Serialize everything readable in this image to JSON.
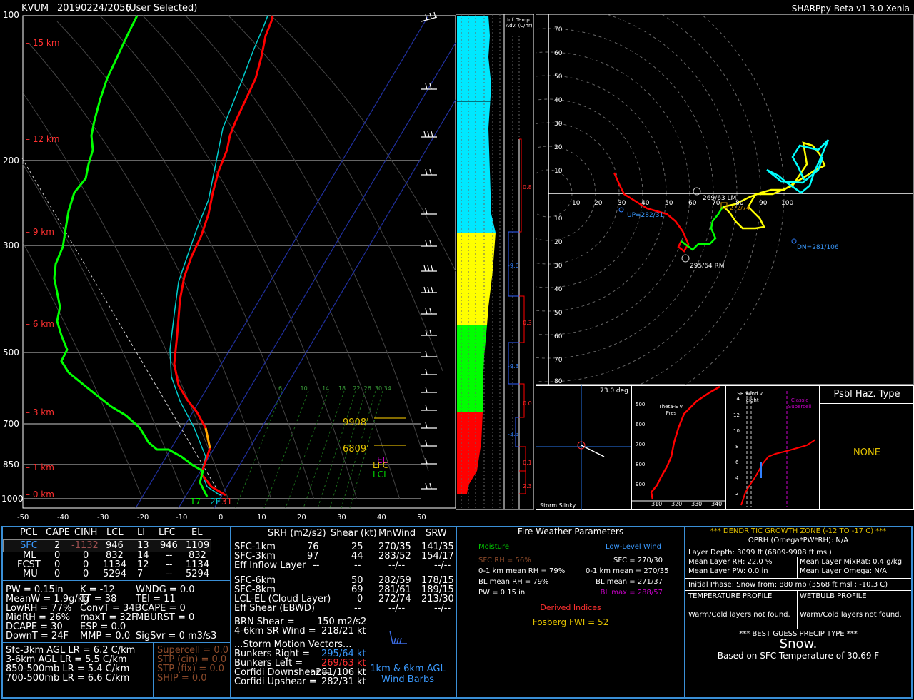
{
  "header": {
    "station": "KVUM",
    "datetime": "20190224/2056",
    "selection": "(User Selected)",
    "app": "SHARPpy Beta v1.3.0 Xenia"
  },
  "skewt": {
    "pressure_labels": [
      "100",
      "200",
      "300",
      "500",
      "700",
      "850",
      "1000"
    ],
    "height_labels": [
      "15 km",
      "12 km",
      "9 km",
      "6 km",
      "3 km",
      "1 km",
      "0 km"
    ],
    "temp_labels": [
      "-50",
      "-40",
      "-30",
      "-20",
      "-10",
      "0",
      "10",
      "20",
      "30",
      "40",
      "50"
    ],
    "mixing_ratio_labels": [
      "6",
      "10",
      "14",
      "18",
      "22",
      "26",
      "30",
      "34"
    ],
    "surface_labels": {
      "td": "17",
      "tw": "2E",
      "t": "31"
    },
    "levels": [
      {
        "label": "9908'",
        "color": "#e0c000"
      },
      {
        "label": "6809'",
        "color": "#e0c000"
      }
    ],
    "parcel_labels": [
      {
        "label": "EL",
        "color": "#cc00cc"
      },
      {
        "label": "LFC",
        "color": "#e0c000"
      },
      {
        "label": "LCL",
        "color": "#00cc00"
      }
    ]
  },
  "theta_column": {
    "title": "Inf. Temp. Adv. (C/hr)",
    "values": [
      "0.8",
      "-9.6",
      "0.3",
      "-9.3",
      "0.0",
      "-3.3",
      "0.1",
      "2.3"
    ]
  },
  "hodograph": {
    "x_ticks": [
      "10",
      "20",
      "30",
      "40",
      "50",
      "60",
      "70",
      "80",
      "90",
      "100"
    ],
    "y_ticks_up": [
      "70",
      "60",
      "50",
      "40",
      "30",
      "20",
      "10"
    ],
    "y_ticks_down": [
      "10",
      "20",
      "30",
      "40",
      "50",
      "60",
      "70",
      "80"
    ],
    "labels": {
      "lm": "269/63 LM",
      "lm2": "272/74",
      "rm": "295/64 RM",
      "up": "UP=282/31",
      "dn": "DN=281/106"
    }
  },
  "slinky": {
    "angle": "73.0 deg",
    "title": "Storm Slinky"
  },
  "thetae": {
    "title": "Theta-E v. Pres",
    "y_ticks": [
      "500",
      "600",
      "700",
      "800",
      "900"
    ],
    "x_ticks": [
      "310",
      "320",
      "330",
      "340"
    ]
  },
  "srwind": {
    "title": "SR Wind v. Height",
    "y_ticks": [
      "14",
      "12",
      "10",
      "8",
      "6",
      "4",
      "2"
    ],
    "classic": "Classic Supercell"
  },
  "psbl_haz": {
    "title": "Psbl Haz. Type",
    "value": "NONE"
  },
  "parcels": {
    "headers": [
      "PCL",
      "CAPE",
      "CINH",
      "LCL",
      "LI",
      "LFC",
      "EL"
    ],
    "rows": [
      [
        "SFC",
        "2",
        "-1132",
        "946",
        "13",
        "946",
        "1109"
      ],
      [
        "ML",
        "0",
        "0",
        "832",
        "14",
        "--",
        "832"
      ],
      [
        "FCST",
        "0",
        "0",
        "1134",
        "12",
        "--",
        "1134"
      ],
      [
        "MU",
        "0",
        "0",
        "5294",
        "7",
        "--",
        "5294"
      ]
    ]
  },
  "indices": {
    "col1": [
      "PW = 0.15in",
      "MeanW = 1.9g/kg",
      "LowRH = 77%",
      "MidRH = 26%",
      "DCAPE = 30",
      "DownT = 24F"
    ],
    "col2": [
      "K = -12",
      "TT = 38",
      "ConvT = 34F",
      "maxT = 32F",
      "ESP = 0.0",
      "MMP = 0.0"
    ],
    "col3": [
      "WNDG = 0.0",
      "TEI = 11",
      "3CAPE = 0",
      "MBURST = 0",
      "",
      "SigSvr = 0 m3/s3"
    ]
  },
  "lapse_rates": [
    "Sfc-3km AGL LR = 6.2 C/km",
    "3-6km AGL LR = 5.5 C/km",
    "850-500mb LR = 5.4 C/km",
    "700-500mb LR = 6.6 C/km"
  ],
  "composite": [
    "Supercell = 0.0",
    "STP (cin) = 0.0",
    "STP (fix) = 0.0",
    "SHIP = 0.0"
  ],
  "kinematics": {
    "headers": [
      "SRH (m2/s2)",
      "Shear (kt)",
      "MnWind",
      "SRW"
    ],
    "rows": [
      [
        "SFC-1km",
        "76",
        "25",
        "270/35",
        "141/35"
      ],
      [
        "SFC-3km",
        "97",
        "44",
        "283/52",
        "154/17"
      ],
      [
        "Eff Inflow Layer",
        "--",
        "--",
        "--/--",
        "--/--"
      ],
      [
        "SFC-6km",
        "",
        "50",
        "282/59",
        "178/15"
      ],
      [
        "SFC-8km",
        "",
        "69",
        "281/61",
        "189/15"
      ],
      [
        "LCL-EL (Cloud Layer)",
        "",
        "0",
        "272/74",
        "213/30"
      ],
      [
        "Eff Shear (EBWD)",
        "",
        "--",
        "--/--",
        "--/--"
      ]
    ],
    "brn": [
      "BRN Shear =",
      "150 m2/s2"
    ],
    "sr46": [
      "4-6km SR Wind =",
      "218/21 kt"
    ],
    "vectors_title": "...Storm Motion Vectors...",
    "vectors": [
      [
        "Bunkers Right =",
        "295/64 kt"
      ],
      [
        "Bunkers Left =",
        "269/63 kt"
      ],
      [
        "Corfidi Downshear =",
        "281/106 kt"
      ],
      [
        "Corfidi Upshear =",
        "282/31 kt"
      ]
    ],
    "barb_caption": "1km & 6km AGL Wind Barbs"
  },
  "fire": {
    "title": "Fire Weather Parameters",
    "moisture": "Moisture",
    "llwind": "Low-Level Wind",
    "left": [
      "SFC RH = 56%",
      "0-1 km mean RH = 79%",
      "BL mean RH = 79%",
      "PW = 0.15 in"
    ],
    "right": [
      "SFC = 270/30",
      "0-1 km mean = 270/35",
      "BL mean = 271/37",
      "BL max = 288/57"
    ],
    "derived": "Derived Indices",
    "fwi": "Fosberg FWI = 52"
  },
  "dgz": {
    "title": "*** DENDRITIC GROWTH ZONE (-12 TO -17 C) ***",
    "oprh": "OPRH (Omega*PW*RH): N/A",
    "depth": "Layer Depth: 3099 ft (6809-9908 ft msl)",
    "rh": "Mean Layer RH: 22.0 %",
    "mixr": "Mean Layer MixRat: 0.4 g/kg",
    "pw": "Mean Layer PW: 0.0 in",
    "omega": "Mean Layer Omega: N/A",
    "phase": "Initial Phase: Snow from: 880 mb (3568 ft msl ; -10.3 C)",
    "temp_title": "TEMPERATURE PROFILE",
    "wb_title": "WETBULB PROFILE",
    "temp_val": "Warm/Cold layers not found.",
    "wb_val": "Warm/Cold layers not found.",
    "precip_title": "*** BEST GUESS PRECIP TYPE ***",
    "precip": "Snow.",
    "precip_basis": "Based on SFC Temperature of 30.69 F"
  },
  "colors": {
    "temp": "#ff0000",
    "dew": "#00ff00",
    "wetbulb": "#00ffff",
    "panel_border": "#3a8fd6"
  }
}
